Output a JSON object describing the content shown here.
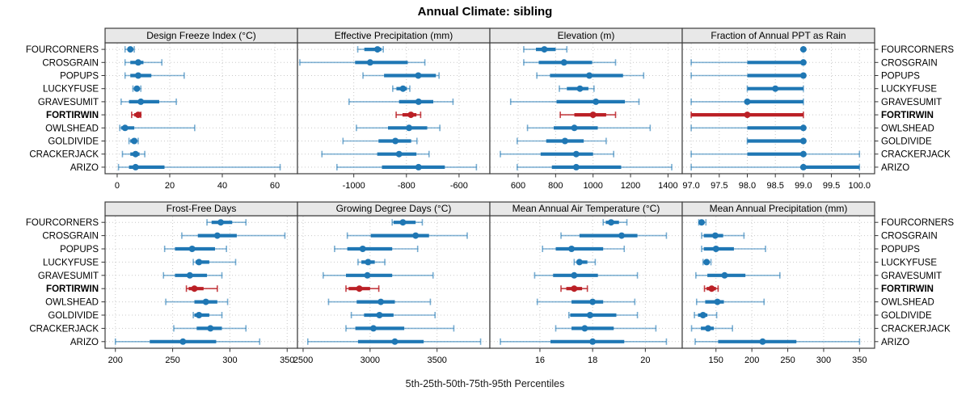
{
  "title": "Annual Climate: sibling",
  "caption": "5th-25th-50th-75th-95th Percentiles",
  "colors": {
    "series": "#1f77b4",
    "highlight": "#bb2026",
    "panel_header_bg": "#e8e8e8",
    "panel_border": "#3c3c3c",
    "grid": "#c9c9c9",
    "tick": "#333333",
    "text": "#000000"
  },
  "chart_data": {
    "type": "dotplot-percentile-trellis",
    "percentile_levels": [
      5,
      25,
      50,
      75,
      95
    ],
    "layout": {
      "rows": 2,
      "cols": 4,
      "grid": "dotted",
      "station_labels": "both-sides"
    },
    "highlight_station": "FORTIRWIN",
    "stations": [
      "FOURCORNERS",
      "CROSGRAIN",
      "POPUPS",
      "LUCKYFUSE",
      "GRAVESUMIT",
      "FORTIRWIN",
      "OWLSHEAD",
      "GOLDIVIDE",
      "CRACKERJACK",
      "ARIZO"
    ],
    "panels": [
      {
        "title": "Design Freeze Index (°C)",
        "xlim": [
          -4.6,
          68.6
        ],
        "ticks": [
          0,
          20,
          40,
          60
        ],
        "tick_labels": [
          "0",
          "20",
          "40",
          "60"
        ],
        "values": [
          [
            3,
            4,
            5,
            6,
            6.5
          ],
          [
            3,
            5,
            8,
            10,
            17
          ],
          [
            3,
            5,
            8,
            13,
            25.5
          ],
          [
            6,
            6.5,
            7.5,
            8.5,
            9
          ],
          [
            1.5,
            4.5,
            9,
            16,
            22.5
          ],
          [
            5.5,
            6.5,
            8,
            8.5,
            9
          ],
          [
            1,
            1.5,
            3,
            6.5,
            29.5
          ],
          [
            4.5,
            5,
            6.5,
            7.5,
            8
          ],
          [
            2,
            5,
            7,
            8.5,
            10.5
          ],
          [
            0.5,
            4.5,
            7,
            18,
            62
          ]
        ]
      },
      {
        "title": "Effective Precipitation (mm)",
        "xlim": [
          -1214,
          -483
        ],
        "ticks": [
          -1000,
          -800,
          -600
        ],
        "tick_labels": [
          "-1000",
          "-800",
          "-600"
        ],
        "values": [
          [
            -985,
            -960,
            -910,
            -895,
            -888
          ],
          [
            -1205,
            -995,
            -938,
            -795,
            -730
          ],
          [
            -965,
            -885,
            -755,
            -688,
            -676
          ],
          [
            -852,
            -838,
            -813,
            -798,
            -787
          ],
          [
            -1018,
            -828,
            -754,
            -698,
            -623
          ],
          [
            -839,
            -815,
            -783,
            -762,
            -746
          ],
          [
            -990,
            -870,
            -790,
            -721,
            -673
          ],
          [
            -1041,
            -906,
            -842,
            -782,
            -760
          ],
          [
            -1121,
            -911,
            -828,
            -762,
            -714
          ],
          [
            -1064,
            -893,
            -754,
            -654,
            -534
          ]
        ]
      },
      {
        "title": "Elevation (m)",
        "xlim": [
          449,
          1476
        ],
        "ticks": [
          600,
          800,
          1000,
          1200,
          1400
        ],
        "tick_labels": [
          "600",
          "800",
          "1000",
          "1200",
          "1400"
        ],
        "values": [
          [
            630,
            695,
            740,
            800,
            860
          ],
          [
            630,
            710,
            845,
            995,
            1120
          ],
          [
            700,
            770,
            980,
            1160,
            1270
          ],
          [
            820,
            860,
            930,
            975,
            1005
          ],
          [
            560,
            805,
            1015,
            1170,
            1245
          ],
          [
            825,
            900,
            1000,
            1070,
            1120
          ],
          [
            650,
            790,
            900,
            1025,
            1305
          ],
          [
            595,
            750,
            850,
            950,
            1070
          ],
          [
            505,
            720,
            910,
            1000,
            1110
          ],
          [
            595,
            780,
            910,
            1150,
            1420
          ]
        ]
      },
      {
        "title": "Fraction of Annual PPT as Rain",
        "xlim": [
          96.84,
          100.27
        ],
        "ticks": [
          97,
          97.5,
          98,
          98.5,
          99,
          99.5,
          100
        ],
        "tick_labels": [
          "97.0",
          "97.5",
          "98.0",
          "98.5",
          "99.0",
          "99.5",
          "100.0"
        ],
        "values": [
          [
            99,
            99,
            99,
            99,
            99
          ],
          [
            97,
            98,
            99,
            99,
            99
          ],
          [
            97,
            98,
            99,
            99,
            99
          ],
          [
            98,
            98,
            98.5,
            99,
            99
          ],
          [
            97,
            98,
            98,
            99,
            99
          ],
          [
            97,
            97,
            98,
            99,
            99
          ],
          [
            97,
            98,
            99,
            99,
            99
          ],
          [
            98,
            98,
            99,
            99,
            99
          ],
          [
            97,
            98,
            99,
            99,
            100
          ],
          [
            97,
            99,
            99,
            100,
            100
          ]
        ]
      },
      {
        "title": "Frost-Free Days",
        "xlim": [
          191,
          359
        ],
        "ticks": [
          200,
          250,
          300,
          350
        ],
        "tick_labels": [
          "200",
          "250",
          "300",
          "350"
        ],
        "values": [
          [
            280,
            284,
            292,
            302,
            314
          ],
          [
            258,
            272,
            289,
            306,
            348
          ],
          [
            243,
            252,
            267,
            287,
            297
          ],
          [
            268,
            270,
            273,
            282,
            305
          ],
          [
            242,
            252,
            265,
            280,
            293
          ],
          [
            262,
            264,
            269,
            277,
            289
          ],
          [
            244,
            269,
            279,
            289,
            298
          ],
          [
            268,
            269,
            273,
            282,
            293
          ],
          [
            251,
            271,
            283,
            293,
            314
          ],
          [
            200,
            230,
            259,
            288,
            326
          ]
        ]
      },
      {
        "title": "Growing Degree Days (°C)",
        "xlim": [
          2458,
          3894
        ],
        "ticks": [
          2500,
          3000,
          3500
        ],
        "tick_labels": [
          "2500",
          "3000",
          "3500"
        ],
        "values": [
          [
            3165,
            3175,
            3245,
            3340,
            3390
          ],
          [
            2830,
            3005,
            3340,
            3440,
            3725
          ],
          [
            2735,
            2830,
            2945,
            3165,
            3355
          ],
          [
            2910,
            2935,
            2985,
            3035,
            3110
          ],
          [
            2650,
            2820,
            2980,
            3165,
            3470
          ],
          [
            2820,
            2840,
            2920,
            3000,
            3065
          ],
          [
            2690,
            2900,
            3080,
            3185,
            3450
          ],
          [
            2860,
            2955,
            3070,
            3175,
            3485
          ],
          [
            2820,
            2890,
            3025,
            3255,
            3625
          ],
          [
            2535,
            2910,
            3185,
            3400,
            3825
          ]
        ]
      },
      {
        "title": "Mean Annual Air Temperature (°C)",
        "xlim": [
          14.1,
          21.4
        ],
        "ticks": [
          16,
          18,
          20
        ],
        "tick_labels": [
          "16",
          "18",
          "20"
        ],
        "values": [
          [
            18.4,
            18.5,
            18.7,
            19.0,
            19.3
          ],
          [
            16.8,
            17.5,
            19.1,
            19.7,
            20.8
          ],
          [
            16.1,
            16.6,
            17.2,
            18.4,
            19.2
          ],
          [
            17.3,
            17.4,
            17.5,
            17.8,
            18.1
          ],
          [
            15.8,
            16.5,
            17.3,
            18.2,
            19.7
          ],
          [
            16.8,
            17.0,
            17.3,
            17.6,
            17.8
          ],
          [
            15.9,
            17.2,
            18.0,
            18.4,
            19.6
          ],
          [
            17.1,
            17.15,
            17.9,
            18.9,
            19.7
          ],
          [
            16.6,
            17.2,
            17.7,
            18.8,
            20.4
          ],
          [
            14.5,
            16.4,
            18.0,
            19.2,
            20.8
          ]
        ]
      },
      {
        "title": "Mean Annual Precipitation (mm)",
        "xlim": [
          103,
          371
        ],
        "ticks": [
          150,
          200,
          250,
          300,
          350
        ],
        "tick_labels": [
          "150",
          "200",
          "250",
          "300",
          "350"
        ],
        "values": [
          [
            126,
            128,
            130,
            132,
            136
          ],
          [
            130,
            133,
            149,
            160,
            189
          ],
          [
            130,
            133,
            150,
            175,
            219
          ],
          [
            132,
            134,
            137,
            140,
            143
          ],
          [
            122,
            138,
            162,
            191,
            239
          ],
          [
            134,
            137,
            144,
            150,
            153
          ],
          [
            123,
            135,
            152,
            161,
            217
          ],
          [
            120,
            125,
            132,
            138,
            151
          ],
          [
            116,
            129,
            139,
            147,
            173
          ],
          [
            121,
            153,
            215,
            262,
            350
          ]
        ]
      }
    ]
  }
}
